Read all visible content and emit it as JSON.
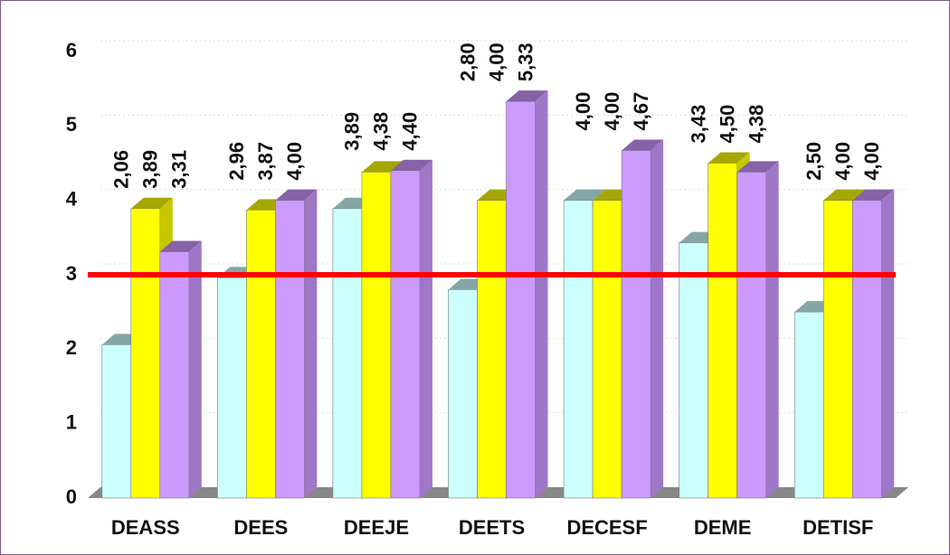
{
  "chart_data": {
    "type": "bar3d",
    "categories": [
      "DEASS",
      "DEES",
      "DEEJE",
      "DEETS",
      "DECESF",
      "DEME",
      "DETISF"
    ],
    "series": [
      {
        "color": "#ccffff",
        "values": [
          2.06,
          2.96,
          3.89,
          2.8,
          4.0,
          3.43,
          2.5
        ],
        "value_labels": [
          "2,06",
          "2,96",
          "3,89",
          "2,80",
          "4,00",
          "3,43",
          "2,50"
        ]
      },
      {
        "color": "#ffff00",
        "values": [
          3.89,
          3.87,
          4.38,
          4.0,
          4.0,
          4.5,
          4.0
        ],
        "value_labels": [
          "3,89",
          "3,87",
          "4,38",
          "4,00",
          "4,00",
          "4,50",
          "4,00"
        ]
      },
      {
        "color": "#cc99ff",
        "values": [
          3.31,
          4.0,
          4.4,
          5.33,
          4.67,
          4.38,
          4.0
        ],
        "value_labels": [
          "3,31",
          "4,00",
          "4,40",
          "5,33",
          "4,67",
          "4,38",
          "4,00"
        ]
      }
    ],
    "ylim": [
      0,
      6
    ],
    "yticks": [
      0,
      1,
      2,
      3,
      4,
      5,
      6
    ],
    "grid": true,
    "reference_line": {
      "value": 3,
      "color": "#ff0000"
    }
  }
}
